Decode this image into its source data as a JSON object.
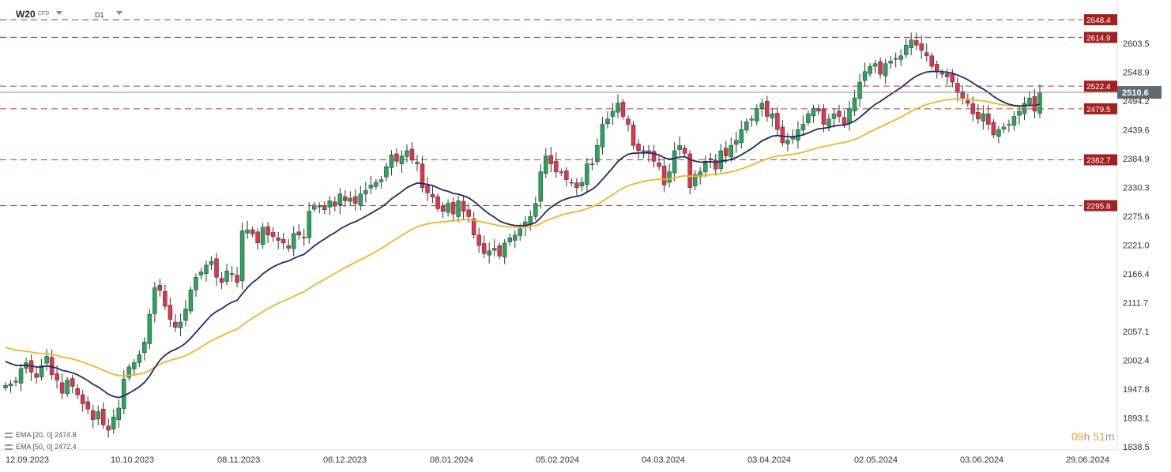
{
  "header": {
    "symbol": "W20",
    "instrument_type": "CFD",
    "timeframe": "D1"
  },
  "timer": {
    "hours": "09",
    "h_unit": "h",
    "minutes": "51",
    "m_unit": "m"
  },
  "indicators": [
    {
      "label": "EMA [20, 0]",
      "value": "2474.8",
      "color": "#1f2a6e"
    },
    {
      "label": "EMA [50, 0]",
      "value": "2472.4",
      "color": "#f0b429"
    }
  ],
  "chart_data": {
    "type": "candlestick",
    "x_tick_labels": [
      "12.09.2023",
      "10.10.2023",
      "08.11.2023",
      "06.12.2023",
      "08.01.2024",
      "05.02.2024",
      "04.03.2024",
      "03.04.2024",
      "02.05.2024",
      "03.06.2024",
      "29.06.2024"
    ],
    "y_tick_labels": [
      "2603.5",
      "2548.9",
      "2494.2",
      "2439.6",
      "2384.9",
      "2330.3",
      "2275.6",
      "2221.0",
      "2166.4",
      "2111.7",
      "2057.1",
      "2002.4",
      "1947.8",
      "1893.1",
      "1838.5"
    ],
    "ylim": [
      1838.5,
      2658
    ],
    "last_price": 2510.6,
    "horizontal_levels": [
      2648.4,
      2614.9,
      2522.4,
      2479.5,
      2382.7,
      2295.8
    ],
    "colors": {
      "up": "#26a65b",
      "down": "#e0344a",
      "level": "#c0392b",
      "ema20": "#1f2a6e",
      "ema50": "#f0b429",
      "price_line": "#888888"
    },
    "candles_close": [
      1955,
      1958,
      1963,
      1987,
      1998,
      1980,
      1970,
      1992,
      2010,
      1975,
      1965,
      1940,
      1965,
      1953,
      1937,
      1920,
      1910,
      1890,
      1905,
      1880,
      1870,
      1895,
      1912,
      1967,
      1990,
      1998,
      2013,
      2037,
      2090,
      2140,
      2135,
      2105,
      2080,
      2065,
      2075,
      2100,
      2136,
      2160,
      2170,
      2183,
      2190,
      2160,
      2150,
      2172,
      2165,
      2150,
      2248,
      2250,
      2242,
      2225,
      2255,
      2240,
      2237,
      2230,
      2225,
      2215,
      2243,
      2240,
      2235,
      2285,
      2297,
      2295,
      2288,
      2305,
      2295,
      2318,
      2305,
      2310,
      2300,
      2318,
      2325,
      2335,
      2340,
      2345,
      2370,
      2392,
      2380,
      2390,
      2400,
      2382,
      2375,
      2330,
      2320,
      2312,
      2290,
      2285,
      2300,
      2280,
      2305,
      2285,
      2275,
      2240,
      2220,
      2205,
      2210,
      2215,
      2200,
      2225,
      2235,
      2240,
      2252,
      2265,
      2275,
      2300,
      2360,
      2390,
      2375,
      2360,
      2360,
      2345,
      2340,
      2330,
      2340,
      2375,
      2375,
      2410,
      2450,
      2460,
      2475,
      2490,
      2465,
      2450,
      2410,
      2400,
      2400,
      2395,
      2380,
      2370,
      2335,
      2360,
      2400,
      2410,
      2395,
      2330,
      2355,
      2360,
      2380,
      2385,
      2365,
      2400,
      2390,
      2410,
      2420,
      2440,
      2455,
      2460,
      2480,
      2490,
      2465,
      2470,
      2440,
      2415,
      2420,
      2425,
      2440,
      2450,
      2470,
      2480,
      2475,
      2450,
      2460,
      2470,
      2465,
      2450,
      2480,
      2500,
      2530,
      2550,
      2560,
      2565,
      2545,
      2565,
      2570,
      2575,
      2580,
      2600,
      2610,
      2600,
      2590,
      2580,
      2560,
      2550,
      2545,
      2540,
      2530,
      2510,
      2500,
      2490,
      2470,
      2460,
      2470,
      2450,
      2430,
      2440,
      2445,
      2450,
      2465,
      2475,
      2490,
      2500,
      2475,
      2510.6
    ]
  }
}
